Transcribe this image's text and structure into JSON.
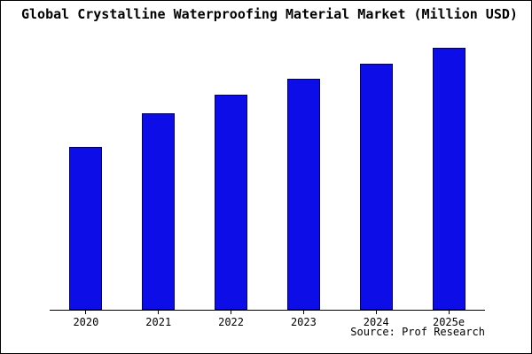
{
  "footer": {
    "source": "Source: Prof Research"
  },
  "chart_data": {
    "type": "bar",
    "title": "Global Crystalline Waterproofing Material Market (Million USD)",
    "categories": [
      "2020",
      "2021",
      "2022",
      "2023",
      "2024",
      "2025e"
    ],
    "values": [
      62,
      75,
      82,
      88,
      94,
      100
    ],
    "xlabel": "",
    "ylabel": "",
    "ylim": [
      0,
      107
    ],
    "grid": false,
    "legend": false,
    "bar_color": "#0d0de8",
    "bar_border_color": "#000066",
    "axis_color": "#000000"
  }
}
